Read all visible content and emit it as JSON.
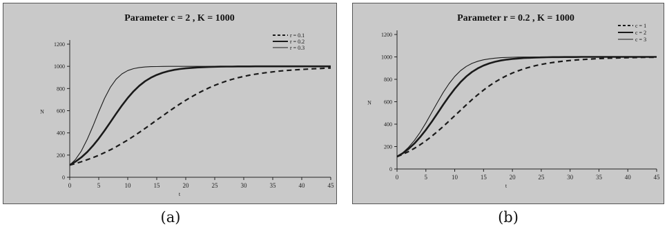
{
  "chart_data": [
    {
      "type": "line",
      "title": "Parameter c = 2 , K = 1000",
      "xlabel": "t",
      "ylabel": "N",
      "xlim": [
        0,
        45
      ],
      "ylim": [
        0,
        1200
      ],
      "x_ticks": [
        0,
        5,
        10,
        15,
        20,
        25,
        30,
        35,
        40,
        45
      ],
      "y_ticks": [
        0,
        200,
        400,
        600,
        800,
        1000,
        1200
      ],
      "grid": false,
      "legend": "top-right",
      "caption": "(a)",
      "x": [
        0,
        1,
        2,
        3,
        4,
        5,
        6,
        7,
        8,
        9,
        10,
        11,
        12,
        13,
        14,
        15,
        16,
        17,
        18,
        19,
        20,
        21,
        22,
        23,
        24,
        25,
        26,
        27,
        28,
        29,
        30,
        31,
        32,
        33,
        34,
        35,
        36,
        37,
        38,
        39,
        40,
        41,
        42,
        43,
        44,
        45
      ],
      "series": [
        {
          "name": "r = 0.1",
          "style": "dashed",
          "values": [
            110,
            124,
            140,
            158,
            177,
            198,
            222,
            247,
            275,
            305,
            336,
            370,
            405,
            441,
            478,
            516,
            553,
            590,
            626,
            661,
            694,
            725,
            754,
            781,
            806,
            829,
            849,
            867,
            883,
            897,
            909,
            920,
            929,
            937,
            944,
            950,
            956,
            961,
            965,
            969,
            972,
            975,
            978,
            980,
            983,
            985
          ]
        },
        {
          "name": "r = 0.2",
          "style": "solid-thick",
          "values": [
            110,
            141,
            180,
            227,
            284,
            349,
            420,
            496,
            573,
            647,
            715,
            775,
            825,
            866,
            898,
            923,
            942,
            957,
            968,
            976,
            982,
            986,
            990,
            992,
            994,
            996,
            997,
            998,
            998,
            999,
            999,
            999,
            1000,
            1000,
            1000,
            1000,
            1000,
            1000,
            1000,
            1000,
            1000,
            1000,
            1000,
            1000,
            1000,
            1000
          ]
        },
        {
          "name": "r = 0.3",
          "style": "solid-thin",
          "values": [
            110,
            161,
            237,
            340,
            461,
            590,
            711,
            811,
            884,
            932,
            962,
            979,
            989,
            994,
            997,
            998,
            999,
            1000,
            1000,
            1000,
            1000,
            1000,
            1000,
            1000,
            1000,
            1000,
            1000,
            1000,
            1000,
            1000,
            1000,
            1000,
            1000,
            1000,
            1000,
            1000,
            1000,
            1000,
            1000,
            1000,
            1000,
            1000,
            1000,
            1000,
            1000,
            1000
          ]
        }
      ]
    },
    {
      "type": "line",
      "title": "Parameter r = 0.2 , K = 1000",
      "xlabel": "t",
      "ylabel": "N",
      "xlim": [
        0,
        45
      ],
      "ylim": [
        0,
        1200
      ],
      "x_ticks": [
        0,
        5,
        10,
        15,
        20,
        25,
        30,
        35,
        40,
        45
      ],
      "y_ticks": [
        0,
        200,
        400,
        600,
        800,
        1000,
        1200
      ],
      "grid": false,
      "legend": "top-right",
      "caption": "(b)",
      "x": [
        0,
        1,
        2,
        3,
        4,
        5,
        6,
        7,
        8,
        9,
        10,
        11,
        12,
        13,
        14,
        15,
        16,
        17,
        18,
        19,
        20,
        21,
        22,
        23,
        24,
        25,
        26,
        27,
        28,
        29,
        30,
        31,
        32,
        33,
        34,
        35,
        36,
        37,
        38,
        39,
        40,
        41,
        42,
        43,
        44,
        45
      ],
      "series": [
        {
          "name": "c = 1",
          "style": "dashed",
          "values": [
            110,
            131,
            156,
            184,
            216,
            252,
            291,
            334,
            379,
            427,
            475,
            524,
            572,
            619,
            663,
            704,
            742,
            776,
            806,
            833,
            856,
            876,
            894,
            909,
            922,
            933,
            942,
            950,
            957,
            963,
            968,
            972,
            976,
            979,
            982,
            985,
            987,
            989,
            990,
            992,
            993,
            994,
            995,
            996,
            996,
            997
          ]
        },
        {
          "name": "c = 2",
          "style": "solid-thick",
          "values": [
            110,
            141,
            180,
            227,
            284,
            349,
            420,
            496,
            573,
            647,
            715,
            775,
            825,
            866,
            898,
            923,
            942,
            957,
            968,
            976,
            982,
            986,
            990,
            992,
            994,
            996,
            997,
            998,
            998,
            999,
            999,
            999,
            1000,
            1000,
            1000,
            1000,
            1000,
            1000,
            1000,
            1000,
            1000,
            1000,
            1000,
            1000,
            1000,
            1000
          ]
        },
        {
          "name": "c = 3",
          "style": "solid-thin",
          "values": [
            110,
            146,
            194,
            254,
            327,
            411,
            502,
            594,
            682,
            760,
            826,
            877,
            915,
            942,
            961,
            974,
            983,
            989,
            993,
            995,
            997,
            998,
            999,
            999,
            1000,
            1000,
            1000,
            1000,
            1000,
            1000,
            1000,
            1000,
            1000,
            1000,
            1000,
            1000,
            1000,
            1000,
            1000,
            1000,
            1000,
            1000,
            1000,
            1000,
            1000,
            1000
          ]
        }
      ]
    }
  ]
}
